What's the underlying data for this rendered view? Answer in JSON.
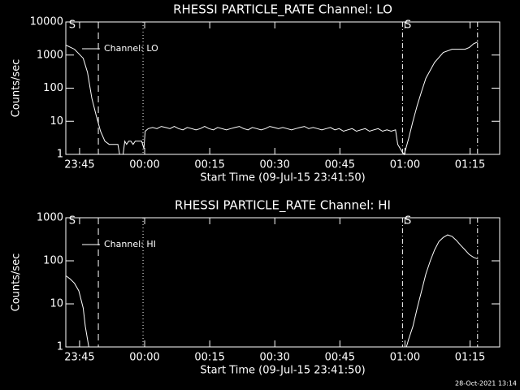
{
  "chart_data": [
    {
      "type": "line",
      "title": "RHESSI PARTICLE_RATE Channel: LO",
      "xlabel": "Start Time (09-Jul-15 23:41:50)",
      "ylabel": "Counts/sec",
      "xlim": [
        0,
        100
      ],
      "xticks": [
        {
          "value": 3.17,
          "label": "23:45"
        },
        {
          "value": 18.17,
          "label": "00:00"
        },
        {
          "value": 33.17,
          "label": "00:15"
        },
        {
          "value": 48.17,
          "label": "00:30"
        },
        {
          "value": 63.17,
          "label": "00:45"
        },
        {
          "value": 78.17,
          "label": "01:00"
        },
        {
          "value": 93.17,
          "label": "01:15"
        }
      ],
      "ylim": [
        1,
        10000
      ],
      "yticks": [
        1,
        10,
        100,
        1000,
        10000
      ],
      "log_y": true,
      "legend": "upper left",
      "vlines": [
        {
          "x": 7.5,
          "style": "dashed"
        },
        {
          "x": 17.8,
          "style": "dotted"
        },
        {
          "x": 77.6,
          "style": "dashdot"
        },
        {
          "x": 94.9,
          "style": "dashdot"
        }
      ],
      "annotations": [
        {
          "text": "S",
          "x": 0.7
        },
        {
          "text": "S",
          "x": 78.1
        }
      ],
      "series": [
        {
          "name": "Channel: LO",
          "color": "#ffffff",
          "x": [
            0,
            2,
            4,
            5,
            6,
            7,
            8,
            9,
            10,
            11,
            12,
            12.4,
            13.2,
            13.6,
            14,
            14.5,
            15,
            15.5,
            16,
            16.5,
            17,
            17.5,
            18,
            18.3,
            19,
            20,
            21,
            22,
            23,
            24,
            25,
            26,
            27,
            28,
            29,
            30,
            31,
            32,
            33,
            34,
            35,
            36,
            37,
            38,
            39,
            40,
            41,
            42,
            43,
            44,
            45,
            46,
            47,
            48,
            49,
            50,
            51,
            52,
            53,
            54,
            55,
            56,
            57,
            58,
            59,
            60,
            61,
            62,
            63,
            64,
            65,
            66,
            67,
            68,
            69,
            70,
            71,
            72,
            73,
            74,
            75,
            76,
            76.5,
            77.5,
            78,
            79,
            80,
            81,
            82,
            83,
            85,
            87,
            89,
            91,
            92,
            93,
            94,
            95
          ],
          "values": [
            2000,
            1500,
            800,
            300,
            50,
            15,
            5,
            2.5,
            2,
            2,
            2,
            1,
            1,
            2.5,
            2,
            2.5,
            2.5,
            2,
            2.5,
            2.5,
            2.5,
            2.5,
            1.5,
            5,
            6,
            6.5,
            6,
            7,
            6.5,
            6,
            7,
            6,
            5.5,
            6.5,
            6,
            5.5,
            6,
            7,
            6,
            5.5,
            6.5,
            6,
            5.5,
            6,
            6.5,
            7,
            6,
            5.5,
            6.5,
            6,
            5.5,
            6,
            7,
            6.5,
            6,
            6.5,
            6,
            5.5,
            6,
            6.5,
            7,
            6,
            6.5,
            6,
            5.5,
            6,
            6.5,
            5.5,
            6,
            5,
            5.5,
            6,
            5,
            5.5,
            6,
            5,
            5.5,
            6,
            5,
            5.5,
            5,
            5.5,
            2,
            1.2,
            1,
            3,
            10,
            30,
            80,
            200,
            600,
            1200,
            1500,
            1500,
            1500,
            1700,
            2200,
            2500
          ]
        }
      ]
    },
    {
      "type": "line",
      "title": "RHESSI PARTICLE_RATE Channel: HI",
      "xlabel": "Start Time (09-Jul-15 23:41:50)",
      "ylabel": "Counts/sec",
      "xlim": [
        0,
        100
      ],
      "xticks": [
        {
          "value": 3.17,
          "label": "23:45"
        },
        {
          "value": 18.17,
          "label": "00:00"
        },
        {
          "value": 33.17,
          "label": "00:15"
        },
        {
          "value": 48.17,
          "label": "00:30"
        },
        {
          "value": 63.17,
          "label": "00:45"
        },
        {
          "value": 78.17,
          "label": "01:00"
        },
        {
          "value": 93.17,
          "label": "01:15"
        }
      ],
      "ylim": [
        1,
        1000
      ],
      "yticks": [
        1,
        10,
        100,
        1000
      ],
      "log_y": true,
      "legend": "upper left",
      "vlines": [
        {
          "x": 7.5,
          "style": "dashed"
        },
        {
          "x": 17.8,
          "style": "dotted"
        },
        {
          "x": 77.6,
          "style": "dashdot"
        },
        {
          "x": 94.9,
          "style": "dashdot"
        }
      ],
      "annotations": [
        {
          "text": "S",
          "x": 0.7
        },
        {
          "text": "S",
          "x": 78.1
        }
      ],
      "series": [
        {
          "name": "Channel: HI",
          "color": "#ffffff",
          "x": [
            0,
            1,
            2,
            3,
            4,
            4.5,
            5,
            5.3,
            40,
            78.5,
            79,
            80,
            81,
            82,
            83,
            84,
            85,
            86,
            87,
            88,
            89,
            90,
            91,
            92,
            93,
            94,
            95
          ],
          "values": [
            45,
            38,
            30,
            20,
            8,
            3,
            1.5,
            1,
            null,
            1,
            1.5,
            3,
            8,
            20,
            50,
            100,
            180,
            280,
            350,
            400,
            370,
            300,
            230,
            180,
            140,
            120,
            110
          ]
        }
      ]
    }
  ],
  "footer": "28-Oct-2021 13:14"
}
